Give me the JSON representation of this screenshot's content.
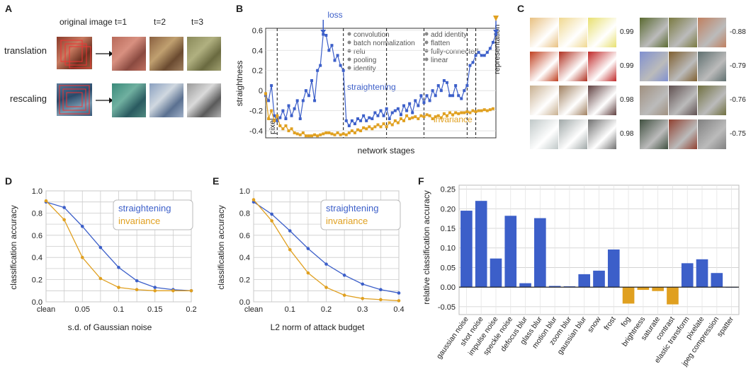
{
  "panels": {
    "A": {
      "letter": "A",
      "col_original": "original image",
      "t_labels": [
        "t=1",
        "t=2",
        "t=3"
      ],
      "row_labels": [
        "translation",
        "rescaling"
      ],
      "colors": {
        "frame": "#d33",
        "arrow": "#111"
      }
    },
    "B": {
      "letter": "B",
      "ylabel": "straightness",
      "xlabel": "network stages",
      "yticks": [
        "0.6",
        "0.4",
        "0.2",
        "0",
        "-0.2",
        "-0.4"
      ],
      "top_labels": {
        "loss": "loss"
      },
      "pixel_label": "pixel",
      "representation_label": "representation",
      "series_labels": {
        "straightening": "straightening",
        "invariance": "invariance"
      },
      "legend_left": [
        "convolution",
        "batch normalization",
        "relu",
        "pooling",
        "identity"
      ],
      "legend_right": [
        "add identity",
        "flatten",
        "fully-connected",
        "linear"
      ],
      "colors": {
        "straightening": "#3c5fc9",
        "invariance": "#e0a020"
      }
    },
    "C": {
      "letter": "C",
      "left_values": [
        "0.99",
        "0.99",
        "0.98",
        "0.98"
      ],
      "right_values": [
        "-0.88",
        "-0.79",
        "-0.76",
        "-0.75"
      ]
    },
    "D": {
      "letter": "D",
      "ylabel": "classification accuracy",
      "xlabel": "s.d. of Gaussian noise",
      "xticks": [
        "clean",
        "0.05",
        "0.1",
        "0.15",
        "0.2"
      ],
      "yticks": [
        "1.0",
        "0.8",
        "0.6",
        "0.4",
        "0.2",
        "0.0"
      ],
      "legend": [
        "straightening",
        "invariance"
      ]
    },
    "E": {
      "letter": "E",
      "ylabel": "classification accuracy",
      "xlabel": "L2 norm of attack budget",
      "xticks": [
        "clean",
        "0.1",
        "0.2",
        "0.3",
        "0.4"
      ],
      "yticks": [
        "1.0",
        "0.8",
        "0.6",
        "0.4",
        "0.2",
        "0.0"
      ],
      "legend": [
        "straightening",
        "invariance"
      ]
    },
    "F": {
      "letter": "F",
      "ylabel": "relative classification accuracy",
      "yticks": [
        "0.25",
        "0.20",
        "0.15",
        "0.10",
        "0.05",
        "0.00",
        "-0.05"
      ]
    }
  },
  "chart_data": [
    {
      "id": "B",
      "type": "line",
      "ylabel": "straightness",
      "xlabel": "network stages",
      "ylim": [
        -0.47,
        0.62
      ],
      "series": [
        {
          "name": "straightening",
          "x": [
            0,
            1,
            2,
            3,
            4,
            5,
            6,
            7,
            8,
            9,
            10,
            11,
            12,
            13,
            14,
            15,
            16,
            17,
            18,
            19,
            20,
            21,
            22,
            23,
            24,
            25,
            26,
            27,
            28,
            29,
            30,
            31,
            32,
            33,
            34,
            35,
            36,
            37,
            38,
            39,
            40,
            41,
            42,
            43,
            44,
            45,
            46,
            47,
            48,
            49,
            50,
            51,
            52,
            53,
            54,
            55,
            56,
            57,
            58,
            59,
            60,
            61,
            62,
            63,
            64,
            65,
            66,
            67,
            68,
            69,
            70,
            71,
            72,
            73,
            74,
            75,
            76,
            77,
            78,
            79,
            80
          ],
          "values": [
            -0.05,
            -0.1,
            0.05,
            -0.25,
            -0.3,
            -0.27,
            -0.2,
            -0.28,
            -0.15,
            -0.25,
            -0.18,
            -0.1,
            -0.28,
            -0.1,
            0.0,
            -0.05,
            0.1,
            -0.1,
            0.2,
            0.25,
            0.56,
            0.55,
            0.4,
            0.45,
            0.3,
            0.35,
            0.25,
            0.2,
            -0.3,
            -0.35,
            -0.3,
            -0.33,
            -0.28,
            -0.3,
            -0.25,
            -0.3,
            -0.27,
            -0.28,
            -0.22,
            -0.25,
            -0.2,
            -0.25,
            -0.18,
            -0.28,
            -0.22,
            -0.2,
            -0.18,
            -0.24,
            -0.15,
            -0.2,
            -0.13,
            -0.22,
            -0.1,
            -0.15,
            -0.05,
            -0.12,
            -0.05,
            -0.1,
            -0.0,
            -0.05,
            0.05,
            -0.0,
            0.1,
            0.08,
            -0.05,
            -0.05,
            0.05,
            -0.05,
            -0.08,
            0.0,
            0.05,
            0.25,
            0.28,
            0.35,
            0.38,
            0.35,
            0.35,
            0.38,
            0.42,
            0.48,
            0.56
          ]
        },
        {
          "name": "invariance",
          "x": [
            0,
            1,
            2,
            3,
            4,
            5,
            6,
            7,
            8,
            9,
            10,
            11,
            12,
            13,
            14,
            15,
            16,
            17,
            18,
            19,
            20,
            21,
            22,
            23,
            24,
            25,
            26,
            27,
            28,
            29,
            30,
            31,
            32,
            33,
            34,
            35,
            36,
            37,
            38,
            39,
            40,
            41,
            42,
            43,
            44,
            45,
            46,
            47,
            48,
            49,
            50,
            51,
            52,
            53,
            54,
            55,
            56,
            57,
            58,
            59,
            60,
            61,
            62,
            63,
            64,
            65,
            66,
            67,
            68,
            69,
            70,
            71,
            72,
            73,
            74,
            75,
            76,
            77,
            78,
            79,
            80
          ],
          "values": [
            -0.03,
            -0.28,
            -0.2,
            -0.3,
            -0.25,
            -0.35,
            -0.38,
            -0.35,
            -0.4,
            -0.38,
            -0.42,
            -0.43,
            -0.44,
            -0.42,
            -0.45,
            -0.45,
            -0.45,
            -0.44,
            -0.45,
            -0.44,
            -0.43,
            -0.42,
            -0.42,
            -0.43,
            -0.44,
            -0.42,
            -0.44,
            -0.43,
            -0.44,
            -0.42,
            -0.4,
            -0.42,
            -0.39,
            -0.4,
            -0.37,
            -0.38,
            -0.36,
            -0.38,
            -0.36,
            -0.34,
            -0.36,
            -0.33,
            -0.36,
            -0.32,
            -0.34,
            -0.3,
            -0.32,
            -0.28,
            -0.3,
            -0.25,
            -0.28,
            -0.27,
            -0.26,
            -0.28,
            -0.25,
            -0.26,
            -0.24,
            -0.25,
            -0.28,
            -0.26,
            -0.25,
            -0.27,
            -0.23,
            -0.25,
            -0.22,
            -0.24,
            -0.22,
            -0.23,
            -0.22,
            -0.22,
            -0.21,
            -0.22,
            -0.2,
            -0.21,
            -0.2,
            -0.2,
            -0.19,
            -0.2,
            -0.19,
            -0.18,
            0.55
          ]
        }
      ]
    },
    {
      "id": "D",
      "type": "line",
      "xlabel": "s.d. of Gaussian noise",
      "ylabel": "classification accuracy",
      "x": [
        0,
        0.025,
        0.05,
        0.075,
        0.1,
        0.125,
        0.15,
        0.175,
        0.2
      ],
      "xlim": [
        0,
        0.2
      ],
      "ylim": [
        0,
        1.0
      ],
      "series": [
        {
          "name": "straightening",
          "values": [
            0.9,
            0.85,
            0.68,
            0.49,
            0.31,
            0.19,
            0.13,
            0.11,
            0.1
          ]
        },
        {
          "name": "invariance",
          "values": [
            0.91,
            0.74,
            0.4,
            0.21,
            0.13,
            0.11,
            0.1,
            0.1,
            0.1
          ]
        }
      ]
    },
    {
      "id": "E",
      "type": "line",
      "xlabel": "L2 norm of attack budget",
      "ylabel": "classification accuracy",
      "x": [
        0,
        0.05,
        0.1,
        0.15,
        0.2,
        0.25,
        0.3,
        0.35,
        0.4
      ],
      "xlim": [
        0,
        0.4
      ],
      "ylim": [
        0,
        1.0
      ],
      "series": [
        {
          "name": "straightening",
          "values": [
            0.9,
            0.79,
            0.64,
            0.48,
            0.34,
            0.24,
            0.16,
            0.11,
            0.08
          ]
        },
        {
          "name": "invariance",
          "values": [
            0.92,
            0.73,
            0.47,
            0.26,
            0.13,
            0.06,
            0.03,
            0.02,
            0.01
          ]
        }
      ]
    },
    {
      "id": "F",
      "type": "bar",
      "ylabel": "relative classification accuracy",
      "ylim": [
        -0.07,
        0.26
      ],
      "categories": [
        "gaussian noise",
        "shot noise",
        "impulse noise",
        "speckle noise",
        "defocus blur",
        "glass blur",
        "motion blur",
        "zoom blur",
        "gaussian blur",
        "snow",
        "frost",
        "fog",
        "brightness",
        "saturate",
        "contrast",
        "elastic transform",
        "pixelate",
        "jpeg compression",
        "spatter"
      ],
      "values": [
        0.195,
        0.22,
        0.073,
        0.182,
        0.01,
        0.176,
        0.003,
        0.002,
        0.033,
        0.042,
        0.096,
        -0.042,
        -0.007,
        -0.01,
        -0.044,
        0.061,
        0.071,
        0.036,
        0.0
      ]
    }
  ]
}
